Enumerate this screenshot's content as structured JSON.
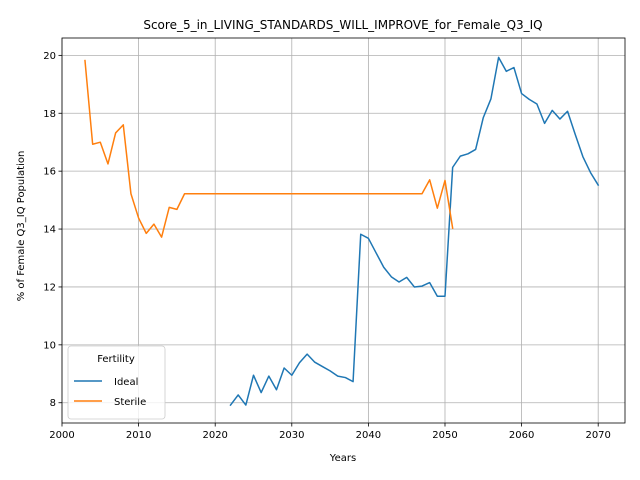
{
  "chart_data": {
    "type": "line",
    "title": "Score_5_in_LIVING_STANDARDS_WILL_IMPROVE_for_Female_Q3_IQ",
    "xlabel": "Years",
    "ylabel": "% of Female Q3_IQ Population",
    "xlim": [
      2000,
      2073.5
    ],
    "ylim": [
      7.3,
      20.6
    ],
    "xticks": [
      2000,
      2010,
      2020,
      2030,
      2040,
      2050,
      2060,
      2070
    ],
    "yticks": [
      8,
      10,
      12,
      14,
      16,
      18,
      20
    ],
    "grid": true,
    "legend": {
      "title": "Fertility",
      "placement": "lower-left"
    },
    "series": [
      {
        "name": "Ideal",
        "color": "#1f77b4",
        "x": [
          2022,
          2023,
          2024,
          2025,
          2026,
          2027,
          2028,
          2029,
          2030,
          2031,
          2032,
          2033,
          2034,
          2035,
          2036,
          2037,
          2038,
          2039,
          2040,
          2041,
          2042,
          2043,
          2044,
          2045,
          2046,
          2047,
          2048,
          2049,
          2050,
          2051,
          2052,
          2053,
          2054,
          2055,
          2056,
          2057,
          2058,
          2059,
          2060,
          2061,
          2062,
          2063,
          2064,
          2065,
          2066,
          2067,
          2068,
          2069,
          2070
        ],
        "values": [
          7.92,
          8.27,
          7.92,
          8.95,
          8.35,
          8.92,
          8.45,
          9.2,
          8.95,
          9.38,
          9.68,
          9.4,
          9.25,
          9.1,
          8.92,
          8.87,
          8.73,
          13.82,
          13.68,
          13.18,
          12.68,
          12.35,
          12.17,
          12.33,
          12.0,
          12.03,
          12.15,
          11.68,
          11.68,
          16.13,
          16.52,
          16.6,
          16.75,
          17.85,
          18.5,
          19.93,
          19.45,
          19.58,
          18.68,
          18.48,
          18.32,
          17.65,
          18.1,
          17.8,
          18.07,
          17.27,
          16.5,
          15.95,
          15.52
        ]
      },
      {
        "name": "Sterile",
        "color": "#ff7f0e",
        "x": [
          2003,
          2004,
          2005,
          2006,
          2007,
          2008,
          2009,
          2010,
          2011,
          2012,
          2013,
          2014,
          2015,
          2016,
          2017,
          2018,
          2019,
          2020,
          2021,
          2022,
          2023,
          2024,
          2025,
          2026,
          2027,
          2028,
          2029,
          2030,
          2031,
          2032,
          2033,
          2034,
          2035,
          2036,
          2037,
          2038,
          2039,
          2040,
          2041,
          2042,
          2043,
          2044,
          2045,
          2046,
          2047,
          2048,
          2049,
          2050,
          2051
        ],
        "values": [
          19.82,
          16.93,
          17.0,
          16.25,
          17.32,
          17.6,
          15.22,
          14.38,
          13.85,
          14.17,
          13.72,
          14.75,
          14.68,
          15.22,
          15.22,
          15.22,
          15.22,
          15.22,
          15.22,
          15.22,
          15.22,
          15.22,
          15.22,
          15.22,
          15.22,
          15.22,
          15.22,
          15.22,
          15.22,
          15.22,
          15.22,
          15.22,
          15.22,
          15.22,
          15.22,
          15.22,
          15.22,
          15.22,
          15.22,
          15.22,
          15.22,
          15.22,
          15.22,
          15.22,
          15.22,
          15.7,
          14.72,
          15.68,
          14.03
        ]
      }
    ]
  }
}
